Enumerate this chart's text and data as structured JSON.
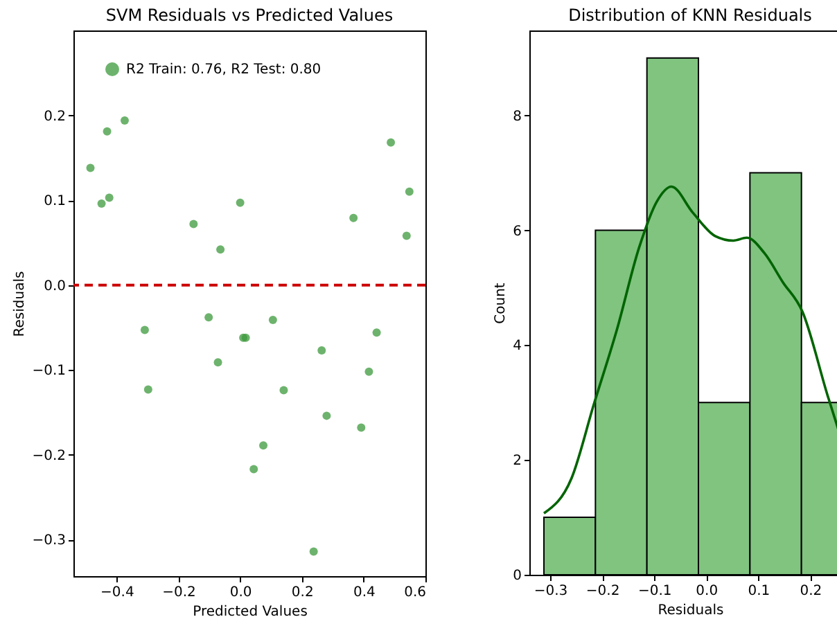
{
  "chart_data": [
    {
      "type": "scatter",
      "title": "SVM Residuals vs Predicted Values",
      "xlabel": "Predicted Values",
      "ylabel": "Residuals",
      "xlim": [
        -0.54,
        0.6
      ],
      "xticks": [
        -0.4,
        -0.2,
        {
          "value": 0,
          "label": "0.0"
        },
        0.2,
        0.4,
        0.6
      ],
      "ylim": [
        -0.343,
        0.3
      ],
      "yticks": [
        -0.3,
        -0.2,
        -0.1,
        {
          "value": 0,
          "label": "0.0"
        },
        0.1,
        0.2
      ],
      "grid": false,
      "legend": "top left",
      "marker": "circle",
      "series": [
        {
          "name": "R2 Train: 0.76, R2 Test: 0.80",
          "color": "#3c9a3c",
          "x": [
            -0.485,
            -0.449,
            -0.431,
            -0.424,
            -0.374,
            -0.151,
            -0.064,
            0.0,
            0.367,
            0.488,
            0.548,
            0.539,
            -0.309,
            -0.298,
            -0.102,
            -0.072,
            0.01,
            0.018,
            0.106,
            0.141,
            0.075,
            0.044,
            0.264,
            0.28,
            0.238,
            0.392,
            0.417,
            0.442
          ],
          "values": [
            0.138,
            0.096,
            0.181,
            0.103,
            0.194,
            0.072,
            0.042,
            0.097,
            0.079,
            0.168,
            0.11,
            0.058,
            -0.053,
            -0.123,
            -0.038,
            -0.091,
            -0.062,
            -0.062,
            -0.041,
            -0.124,
            -0.189,
            -0.217,
            -0.077,
            -0.154,
            -0.314,
            -0.168,
            -0.102,
            -0.056
          ]
        }
      ],
      "ref_lines": [
        {
          "axis": "y",
          "value": 0.0,
          "color": "#cc0000",
          "line_style": "dashed"
        }
      ]
    },
    {
      "type": "histogram",
      "title": "Distribution of KNN Residuals",
      "xlabel": "Residuals",
      "ylabel": "Count",
      "xlim": [
        -0.34,
        0.278
      ],
      "xticks": [
        -0.3,
        -0.2,
        -0.1,
        {
          "value": 0,
          "label": "0.0"
        },
        0.1,
        0.2
      ],
      "ylim": [
        0,
        9.48
      ],
      "yticks": [
        0,
        2,
        4,
        6,
        8
      ],
      "grid": false,
      "color": "#80c480",
      "bins": [
        -0.312,
        -0.213,
        -0.114,
        -0.015,
        0.084,
        0.183,
        0.278
      ],
      "values": [
        1,
        6,
        9,
        3,
        7,
        3
      ],
      "series": [
        {
          "type": "line",
          "color": "#006400",
          "x": [
            -0.312,
            -0.259,
            -0.216,
            -0.172,
            -0.129,
            -0.095,
            -0.067,
            -0.026,
            0.017,
            0.052,
            0.078,
            0.112,
            0.147,
            0.185,
            0.233,
            0.278
          ],
          "values": [
            1.07,
            1.68,
            2.97,
            4.26,
            5.7,
            6.5,
            6.76,
            6.31,
            5.9,
            5.82,
            5.87,
            5.6,
            5.1,
            4.58,
            3.13,
            1.84
          ]
        }
      ]
    }
  ]
}
